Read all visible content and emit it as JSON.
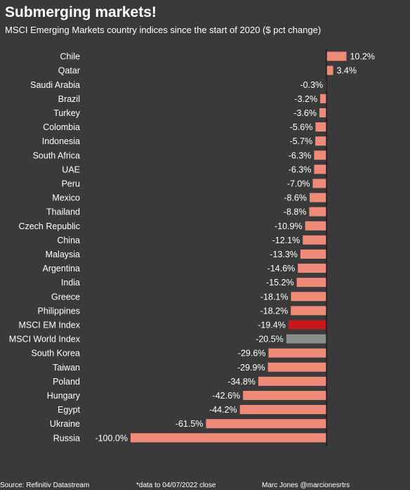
{
  "title": "Submerging markets!",
  "subtitle": "MSCI Emerging Markets country indices since the start of 2020 ($ pct change)",
  "footer": {
    "source": "Source: Refinitiv Datastream",
    "note": "*data to 04/07/2022 close",
    "author": "Marc Jones @marcionesrtrs"
  },
  "colors": {
    "background": "#3a3a3a",
    "bar_default": "#f08a78",
    "bar_em_index": "#c8181e",
    "bar_world_index": "#8c8c8c",
    "axis": "#111111",
    "text": "#ffffff"
  },
  "chart_data": {
    "type": "bar",
    "orientation": "horizontal",
    "categories": [
      "Chile",
      "Qatar",
      "Saudi Arabia",
      "Brazil",
      "Turkey",
      "Colombia",
      "Indonesia",
      "South Africa",
      "UAE",
      "Peru",
      "Mexico",
      "Thailand",
      "Czech Republic",
      "China",
      "Malaysia",
      "Argentina",
      "India",
      "Greece",
      "Philippines",
      "MSCI EM Index",
      "MSCI World Index",
      "South Korea",
      "Taiwan",
      "Poland",
      "Hungary",
      "Egypt",
      "Ukraine",
      "Russia"
    ],
    "values": [
      10.2,
      3.4,
      -0.3,
      -3.2,
      -3.6,
      -5.6,
      -5.7,
      -6.3,
      -6.3,
      -7.0,
      -8.6,
      -8.8,
      -10.9,
      -12.1,
      -13.3,
      -14.6,
      -15.2,
      -18.1,
      -18.2,
      -19.4,
      -20.5,
      -29.6,
      -29.9,
      -34.8,
      -42.6,
      -44.2,
      -61.5,
      -100.0
    ],
    "value_labels": [
      "10.2%",
      "3.4%",
      "-0.3%",
      "-3.2%",
      "-3.6%",
      "-5.6%",
      "-5.7%",
      "-6.3%",
      "-6.3%",
      "-7.0%",
      "-8.6%",
      "-8.8%",
      "-10.9%",
      "-12.1%",
      "-13.3%",
      "-14.6%",
      "-15.2%",
      "-18.1%",
      "-18.2%",
      "-19.4%",
      "-20.5%",
      "-29.6%",
      "-29.9%",
      "-34.8%",
      "-42.6%",
      "-44.2%",
      "-61.5%",
      "-100.0%"
    ],
    "highlight": {
      "MSCI EM Index": "#c8181e",
      "MSCI World Index": "#8c8c8c"
    },
    "xlim": [
      -100,
      10.2
    ],
    "grid": false,
    "legend": "none"
  }
}
